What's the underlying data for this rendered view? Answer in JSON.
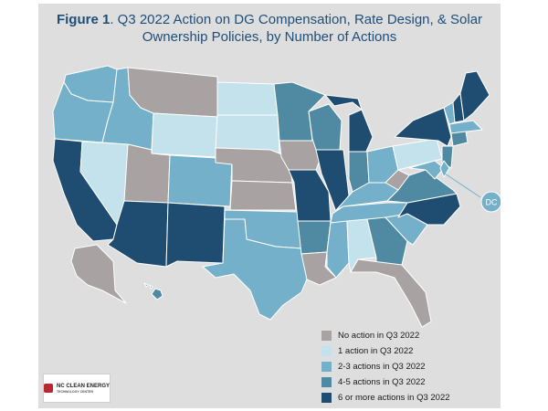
{
  "title": {
    "label": "Figure 1",
    "text": ". Q3 2022 Action on DG Compensation, Rate Design, & Solar Ownership Policies, by Number of Actions"
  },
  "legend": [
    {
      "label": "No action in Q3 2022",
      "color": "#a8a2a2"
    },
    {
      "label": "1 action in Q3 2022",
      "color": "#c3e2ec"
    },
    {
      "label": "2-3 actions in Q3 2022",
      "color": "#74b0c9"
    },
    {
      "label": "4-5 actions in Q3 2022",
      "color": "#4f8aa2"
    },
    {
      "label": "6 or more actions in Q3 2022",
      "color": "#1f4d72"
    }
  ],
  "dc_label": "DC",
  "logo": {
    "name": "NC CLEAN ENERGY",
    "subtitle": "TECHNOLOGY CENTER"
  },
  "states": {
    "WA": "2-3",
    "OR": "2-3",
    "CA": "6+",
    "NV": "1",
    "ID": "2-3",
    "MT": "none",
    "WY": "1",
    "UT": "none",
    "AZ": "6+",
    "CO": "2-3",
    "NM": "6+",
    "ND": "1",
    "SD": "1",
    "NE": "none",
    "KS": "none",
    "OK": "2-3",
    "TX": "2-3",
    "MN": "4-5",
    "IA": "none",
    "MO": "6+",
    "AR": "4-5",
    "LA": "none",
    "WI": "4-5",
    "IL": "6+",
    "MI": "6+",
    "IN": "4-5",
    "OH": "2-3",
    "KY": "2-3",
    "TN": "2-3",
    "MS": "2-3",
    "AL": "1",
    "GA": "4-5",
    "FL": "none",
    "SC": "2-3",
    "NC": "6+",
    "VA": "4-5",
    "WV": "none",
    "PA": "1",
    "NY": "6+",
    "VT": "2-3",
    "NH": "6+",
    "ME": "6+",
    "MA": "2-3",
    "CT": "4-5",
    "NJ": "4-5",
    "MD": "2-3",
    "DE": "2-3",
    "AK": "none",
    "HI": "4-5",
    "DC": "2-3"
  }
}
